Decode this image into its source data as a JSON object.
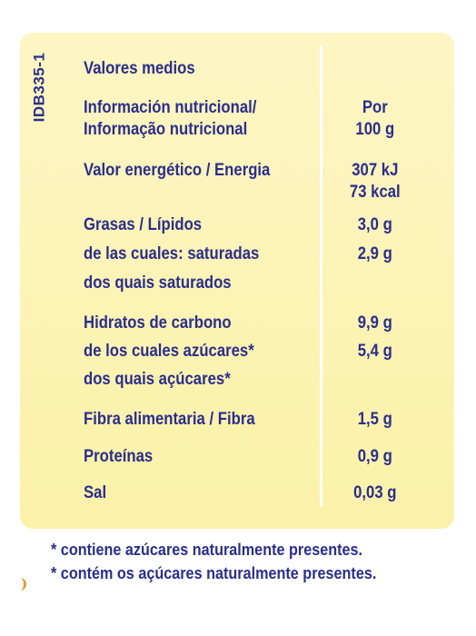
{
  "side_code": "IDB335-1",
  "header": {
    "label": "Valores medios"
  },
  "rows": [
    {
      "labels": [
        "Información nutricional/",
        "Informação nutricional"
      ],
      "values": [
        "Por",
        "100 g"
      ]
    },
    {
      "labels": [
        "Valor energético / Energia"
      ],
      "values": [
        "307 kJ",
        "73 kcal"
      ]
    },
    {
      "labels": [
        "Grasas / Lípidos"
      ],
      "values": [
        "3,0 g"
      ]
    },
    {
      "labels": [
        "de las cuales: saturadas"
      ],
      "values": [
        "2,9 g"
      ]
    },
    {
      "labels": [
        "dos quais saturados"
      ],
      "values": []
    },
    {
      "labels": [
        "Hidratos de carbono"
      ],
      "values": [
        "9,9 g"
      ]
    },
    {
      "labels": [
        "de los cuales azúcares*"
      ],
      "values": [
        "5,4 g"
      ]
    },
    {
      "labels": [
        "dos quais açúcares*"
      ],
      "values": []
    },
    {
      "labels": [
        "Fibra alimentaria / Fibra"
      ],
      "values": [
        "1,5 g"
      ]
    },
    {
      "labels": [
        "Proteínas"
      ],
      "values": [
        "0,9 g"
      ]
    },
    {
      "labels": [
        "Sal"
      ],
      "values": [
        "0,03 g"
      ]
    }
  ],
  "footnotes": [
    "* contiene azúcares naturalmente presentes.",
    "* contém os açúcares naturalmente presentes."
  ]
}
